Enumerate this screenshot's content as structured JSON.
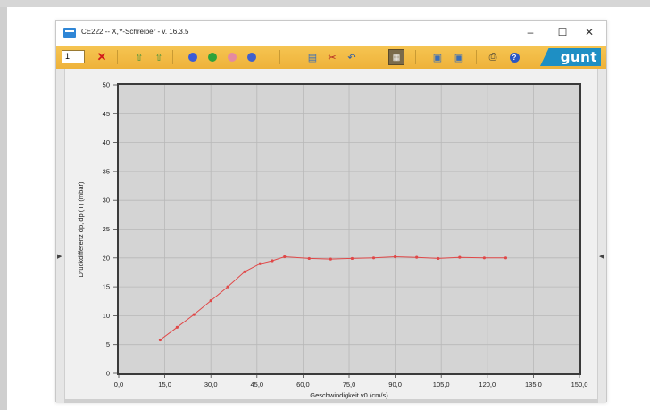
{
  "window": {
    "title": "CE222  --  X,Y-Schreiber - v. 16.3.5",
    "minimize_glyph": "–",
    "maximize_glyph": "☐",
    "close_glyph": "✕"
  },
  "toolbar": {
    "channel_value": "1",
    "logo_text": "gunt",
    "icons": [
      "close-red-icon",
      "upload-icon",
      "upload-alt-icon",
      "blue-circle-icon",
      "green-circle-icon",
      "pink-circle-icon",
      "blue-circle-alt-icon",
      "document-icon",
      "tools-icon",
      "undo-icon",
      "grid-toggle-icon",
      "export-icon",
      "import-icon",
      "print-icon",
      "help-icon"
    ],
    "colors": {
      "bar": "#f0b840",
      "logo": "#1e8fc4"
    }
  },
  "chart_data": {
    "type": "line",
    "xlabel": "Geschwindigkeit v0   (cm/s)",
    "ylabel": "Druckdifferenz  dp, dp (T)   (mbar)",
    "xlim": [
      0,
      150
    ],
    "ylim": [
      0,
      50
    ],
    "x_ticks": [
      "0,0",
      "15,0",
      "30,0",
      "45,0",
      "60,0",
      "75,0",
      "90,0",
      "105,0",
      "120,0",
      "135,0",
      "150,0"
    ],
    "y_ticks": [
      "0",
      "5",
      "10",
      "15",
      "20",
      "25",
      "30",
      "35",
      "40",
      "45",
      "50"
    ],
    "grid": true,
    "series": [
      {
        "color": "#e04848",
        "x": [
          13.5,
          19,
          24.5,
          30,
          35.5,
          41,
          46,
          50,
          54,
          62,
          69,
          76,
          83,
          90,
          97,
          104,
          111,
          119,
          126
        ],
        "y": [
          5.8,
          8,
          10.2,
          12.6,
          15,
          17.6,
          19,
          19.5,
          20.2,
          19.9,
          19.8,
          19.9,
          20,
          20.2,
          20.1,
          19.9,
          20.1,
          20,
          20
        ]
      }
    ]
  }
}
